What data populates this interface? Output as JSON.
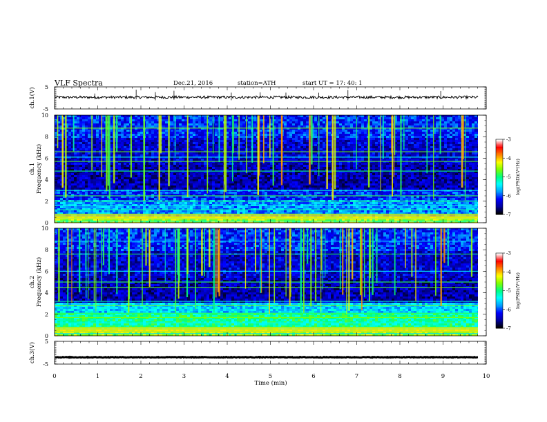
{
  "header": {
    "title": "VLF  Spectra",
    "date": "Dec.21, 2016",
    "station": "station=ATH",
    "start_ut": "start  UT  =    17: 40: 1"
  },
  "chart_data": [
    {
      "type": "line",
      "name": "ch1-waveform",
      "ylabel": "ch.1(V)",
      "ylim": [
        -5,
        5
      ],
      "yticks": [
        "5",
        "-5"
      ],
      "baseline_v": 0.3,
      "noise_v": 0.6
    },
    {
      "type": "heatmap",
      "name": "ch1-spectrogram",
      "ylabel": "Frequency (kHz)",
      "ylabel2": "ch.1",
      "ylim": [
        0,
        10
      ],
      "yticks": [
        "0",
        "2",
        "4",
        "6",
        "8",
        "10"
      ],
      "xlim": [
        0,
        10
      ],
      "data_end_min": 9.8,
      "colorbar": {
        "label": "log(PSD)(V²/Hz)",
        "ticks": [
          "-3",
          "-4",
          "-5",
          "-6",
          "-7"
        ],
        "range": [
          -7,
          -3
        ]
      }
    },
    {
      "type": "heatmap",
      "name": "ch2-spectrogram",
      "ylabel": "Frequency (kHz)",
      "ylabel2": "ch.2",
      "ylim": [
        0,
        10
      ],
      "yticks": [
        "0",
        "2",
        "4",
        "6",
        "8",
        "10"
      ],
      "xlim": [
        0,
        10
      ],
      "data_end_min": 9.8,
      "colorbar": {
        "label": "log(PSD)(V²/Hz)",
        "ticks": [
          "-3",
          "-4",
          "-5",
          "-6",
          "-7"
        ],
        "range": [
          -7,
          -3
        ]
      }
    },
    {
      "type": "line",
      "name": "ch3-waveform",
      "ylabel": "ch.3(V)",
      "ylim": [
        -5,
        5
      ],
      "yticks": [
        "5",
        "-5"
      ],
      "baseline_v": -2.0,
      "noise_v": 0.15
    }
  ],
  "x_axis": {
    "label": "Time  (min)",
    "ticks": [
      "0",
      "1",
      "2",
      "3",
      "4",
      "5",
      "6",
      "7",
      "8",
      "9",
      "10"
    ],
    "xlim": [
      0,
      10
    ]
  },
  "colors": {
    "background": "#ffffff",
    "axis": "#000000",
    "colormap": [
      "#000000",
      "#0000a0",
      "#0000ff",
      "#00a0ff",
      "#00ffff",
      "#00ff80",
      "#80ff00",
      "#ffff00",
      "#ff8000",
      "#ff0000",
      "#ffffff"
    ]
  }
}
